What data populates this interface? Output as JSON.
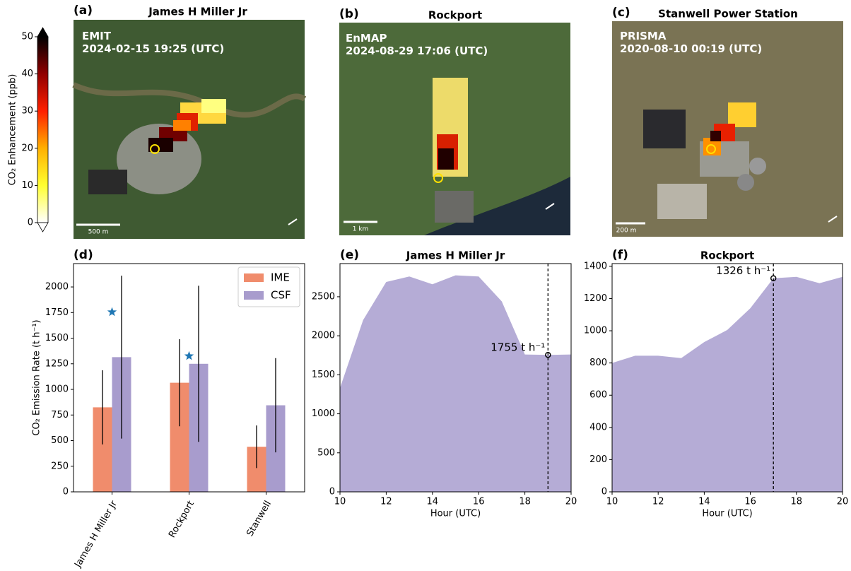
{
  "colorbar": {
    "label": "CO₂ Enhancement (ppb)",
    "lim": [
      0,
      50
    ],
    "ticks": [
      0,
      10,
      20,
      30,
      40,
      50
    ],
    "colors": [
      "#ffffff",
      "#ffff30",
      "#ffb000",
      "#ff2000",
      "#900000",
      "#000000"
    ]
  },
  "images": [
    {
      "letter": "(a)",
      "title": "James H Miller Jr",
      "sensor": "EMIT",
      "datetime": "2024-02-15 19:25 (UTC)",
      "scale": "500 m"
    },
    {
      "letter": "(b)",
      "title": "Rockport",
      "sensor": "EnMAP",
      "datetime": "2024-08-29 17:06 (UTC)",
      "scale": "1 km"
    },
    {
      "letter": "(c)",
      "title": "Stanwell Power Station",
      "sensor": "PRISMA",
      "datetime": "2020-08-10 00:19 (UTC)",
      "scale": "200 m"
    }
  ],
  "chart_data": [
    {
      "type": "bar",
      "letter": "(d)",
      "ylabel": "CO₂ Emission Rate (t h⁻¹)",
      "categories": [
        "James H Miller Jr",
        "Rockport",
        "Stanwell"
      ],
      "series": [
        {
          "name": "IME",
          "color": "#f08c6c",
          "values": [
            825,
            1065,
            440
          ],
          "errors": [
            362,
            425,
            208
          ]
        },
        {
          "name": "CSF",
          "color": "#a89ccd",
          "values": [
            1315,
            1250,
            845
          ],
          "errors": [
            795,
            762,
            460
          ]
        }
      ],
      "stars": {
        "color": "#1f77b4",
        "values": [
          1755,
          1326,
          null
        ]
      },
      "ylim": [
        0,
        2228
      ],
      "yticks": [
        0,
        250,
        500,
        750,
        1000,
        1250,
        1500,
        1750,
        2000
      ],
      "legend": "upper right"
    },
    {
      "type": "area",
      "letter": "(e)",
      "title": "James H Miller Jr",
      "xlabel": "Hour (UTC)",
      "x": [
        10,
        11,
        12,
        13,
        14,
        15,
        16,
        17,
        18,
        19,
        20
      ],
      "series": [
        {
          "color": "#b5acd6",
          "values": [
            1330,
            2200,
            2690,
            2760,
            2660,
            2775,
            2760,
            2440,
            1760,
            1755,
            1760
          ]
        }
      ],
      "xlim": [
        10,
        20
      ],
      "xticks": [
        10,
        12,
        14,
        16,
        18,
        20
      ],
      "ylim": [
        0,
        2925
      ],
      "yticks": [
        0,
        500,
        1000,
        1500,
        2000,
        2500
      ],
      "annotation": {
        "x": 19,
        "y": 1755,
        "label": "1755 t h⁻¹"
      }
    },
    {
      "type": "area",
      "letter": "(f)",
      "title": "Rockport",
      "xlabel": "Hour (UTC)",
      "x": [
        10,
        11,
        12,
        13,
        14,
        15,
        16,
        17,
        18,
        19,
        20
      ],
      "series": [
        {
          "color": "#b5acd6",
          "values": [
            800,
            845,
            845,
            830,
            930,
            1005,
            1140,
            1326,
            1335,
            1295,
            1335
          ]
        }
      ],
      "xlim": [
        10,
        20
      ],
      "xticks": [
        10,
        12,
        14,
        16,
        18,
        20
      ],
      "ylim": [
        0,
        1417
      ],
      "yticks": [
        0,
        200,
        400,
        600,
        800,
        1000,
        1200,
        1400
      ],
      "annotation": {
        "x": 17,
        "y": 1326,
        "label": "1326 t h⁻¹"
      }
    }
  ]
}
